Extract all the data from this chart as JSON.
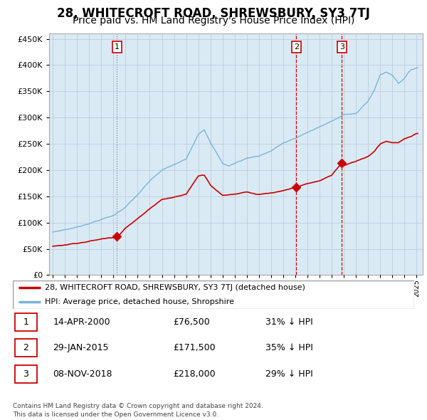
{
  "title": "28, WHITECROFT ROAD, SHREWSBURY, SY3 7TJ",
  "subtitle": "Price paid vs. HM Land Registry's House Price Index (HPI)",
  "legend_line1": "28, WHITECROFT ROAD, SHREWSBURY, SY3 7TJ (detached house)",
  "legend_line2": "HPI: Average price, detached house, Shropshire",
  "footer1": "Contains HM Land Registry data © Crown copyright and database right 2024.",
  "footer2": "This data is licensed under the Open Government Licence v3.0.",
  "table_rows": [
    {
      "num": "1",
      "date": "14-APR-2000",
      "price": "£76,500",
      "hpi": "31% ↓ HPI"
    },
    {
      "num": "2",
      "date": "29-JAN-2015",
      "price": "£171,500",
      "hpi": "35% ↓ HPI"
    },
    {
      "num": "3",
      "date": "08-NOV-2018",
      "price": "£218,000",
      "hpi": "29% ↓ HPI"
    }
  ],
  "sale_years": [
    2000.29,
    2015.08,
    2018.84
  ],
  "sale_prices": [
    76500,
    171500,
    218000
  ],
  "hpi_color": "#7ab4d8",
  "hpi_fill_color": "#daeaf5",
  "price_color": "#cc0000",
  "background_color": "#ffffff",
  "grid_color": "#bbccdd",
  "ylim": [
    0,
    460000
  ],
  "xlim_start": 1994.7,
  "xlim_end": 2025.5,
  "title_fontsize": 12,
  "subtitle_fontsize": 10,
  "hpi_key_years": [
    1995,
    1996,
    1997,
    1998,
    1999,
    2000,
    2001,
    2002,
    2003,
    2004,
    2005,
    2006,
    2007,
    2007.5,
    2008,
    2009,
    2009.5,
    2010,
    2011,
    2012,
    2013,
    2014,
    2015,
    2016,
    2017,
    2018,
    2019,
    2020,
    2021,
    2021.5,
    2022,
    2022.5,
    2023,
    2023.5,
    2024,
    2024.5,
    2025
  ],
  "hpi_key_prices": [
    82000,
    87000,
    92000,
    100000,
    108000,
    115000,
    132000,
    155000,
    180000,
    200000,
    210000,
    220000,
    270000,
    280000,
    255000,
    215000,
    210000,
    215000,
    225000,
    230000,
    240000,
    255000,
    263000,
    275000,
    285000,
    295000,
    310000,
    310000,
    335000,
    355000,
    385000,
    390000,
    385000,
    370000,
    380000,
    395000,
    400000
  ],
  "price_key_years": [
    1995,
    1996,
    1997,
    1998,
    1999,
    2000.1,
    2000.29,
    2000.5,
    2001,
    2002,
    2003,
    2004,
    2005,
    2006,
    2007,
    2007.5,
    2008,
    2009,
    2010,
    2011,
    2012,
    2013,
    2014,
    2015.08,
    2015.5,
    2016,
    2017,
    2018,
    2018.84,
    2019,
    2020,
    2021,
    2021.5,
    2022,
    2022.5,
    2023,
    2023.5,
    2024,
    2024.5,
    2025
  ],
  "price_key_prices": [
    55000,
    58000,
    62000,
    66000,
    70000,
    74000,
    76500,
    80000,
    93000,
    110000,
    130000,
    148000,
    152000,
    158000,
    193000,
    195000,
    177000,
    157000,
    160000,
    165000,
    160000,
    162000,
    165000,
    171500,
    175000,
    178000,
    183000,
    194000,
    218000,
    212000,
    220000,
    230000,
    240000,
    255000,
    260000,
    258000,
    258000,
    265000,
    268000,
    275000
  ]
}
